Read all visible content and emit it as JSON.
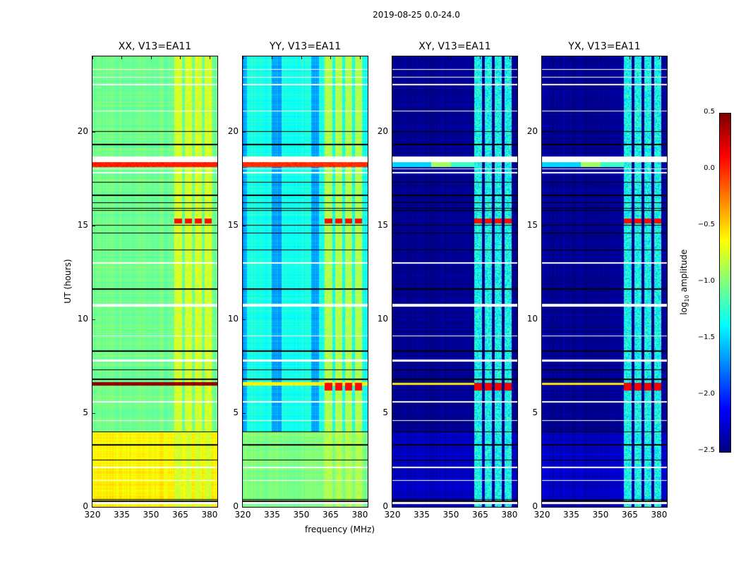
{
  "chart_data": {
    "type": "heatmap",
    "title": "2019-08-25 0.0-24.0",
    "xlabel": "frequency (MHz)",
    "ylabel": "UT (hours)",
    "xlim": [
      320,
      384
    ],
    "ylim": [
      0,
      24
    ],
    "xticks": [
      "320",
      "335",
      "350",
      "365",
      "380"
    ],
    "yticks": [
      "0",
      "5",
      "10",
      "15",
      "20"
    ],
    "colorbar": {
      "label_main": "log",
      "label_sub": "10",
      "label_rest": " amplitude",
      "range": [
        -2.5,
        0.5
      ],
      "ticks": [
        "0.5",
        "0.0",
        "−0.5",
        "−1.0",
        "−1.5",
        "−2.0",
        "−2.5"
      ],
      "colormap": "jet"
    },
    "flagged_gaps_hours": [
      [
        18.35,
        18.65
      ],
      [
        10.65,
        10.8
      ],
      [
        7.75,
        7.85
      ],
      [
        5.55,
        5.65
      ],
      [
        0.15,
        0.25
      ]
    ],
    "white_lines_hours": [
      23.3,
      22.9,
      22.5,
      21.1,
      18.0,
      17.8,
      13.0,
      9.1,
      4.6,
      2.1,
      1.4
    ],
    "black_lines_hours": [
      20.0,
      19.3,
      17.3,
      16.6,
      16.2,
      15.9,
      15.8,
      15.0,
      14.6,
      13.7,
      11.6,
      8.3,
      7.3,
      6.8,
      4.0,
      3.3,
      2.5,
      0.4,
      0.3
    ],
    "rfi_bands_mhz": [
      [
        362,
        366
      ],
      [
        367.5,
        371
      ],
      [
        372.5,
        376
      ],
      [
        377.5,
        381
      ]
    ],
    "panels": [
      {
        "title": "XX, V13=EA11",
        "base": -1.05,
        "band_level": -0.75,
        "low_time_level": -0.6,
        "events": [
          {
            "hours": [
              18.1,
              18.35
            ],
            "level": 0.05,
            "broadband": true
          },
          {
            "hours": [
              6.45,
              6.65
            ],
            "level": 0.45,
            "broadband": true
          },
          {
            "hours": [
              15.1,
              15.35
            ],
            "level": 0.1,
            "broadband": false
          }
        ]
      },
      {
        "title": "YY, V13=EA11",
        "base": -1.3,
        "band_level": -0.85,
        "low_time_level": -1.0,
        "events": [
          {
            "hours": [
              18.1,
              18.35
            ],
            "level": 0.0,
            "broadband": true
          },
          {
            "hours": [
              6.45,
              6.65
            ],
            "level": -0.6,
            "broadband": true
          },
          {
            "hours": [
              6.2,
              6.6
            ],
            "level": 0.1,
            "broadband": false
          },
          {
            "hours": [
              15.1,
              15.35
            ],
            "level": 0.1,
            "broadband": false
          }
        ]
      },
      {
        "title": "XY, V13=EA11",
        "base": -2.45,
        "band_level": -1.35,
        "low_time_level": -2.3,
        "events": [
          {
            "hours": [
              18.1,
              18.35
            ],
            "level": -1.2,
            "broadband": true
          },
          {
            "hours": [
              6.5,
              6.6
            ],
            "level": -0.55,
            "broadband": true
          },
          {
            "hours": [
              6.2,
              6.6
            ],
            "level": 0.15,
            "broadband": false
          },
          {
            "hours": [
              15.1,
              15.35
            ],
            "level": 0.1,
            "broadband": false
          }
        ]
      },
      {
        "title": "YX, V13=EA11",
        "base": -2.45,
        "band_level": -1.35,
        "low_time_level": -2.3,
        "events": [
          {
            "hours": [
              18.1,
              18.35
            ],
            "level": -1.2,
            "broadband": true
          },
          {
            "hours": [
              6.5,
              6.6
            ],
            "level": -0.55,
            "broadband": true
          },
          {
            "hours": [
              6.2,
              6.6
            ],
            "level": 0.15,
            "broadband": false
          },
          {
            "hours": [
              15.1,
              15.35
            ],
            "level": 0.1,
            "broadband": false
          }
        ]
      }
    ]
  }
}
